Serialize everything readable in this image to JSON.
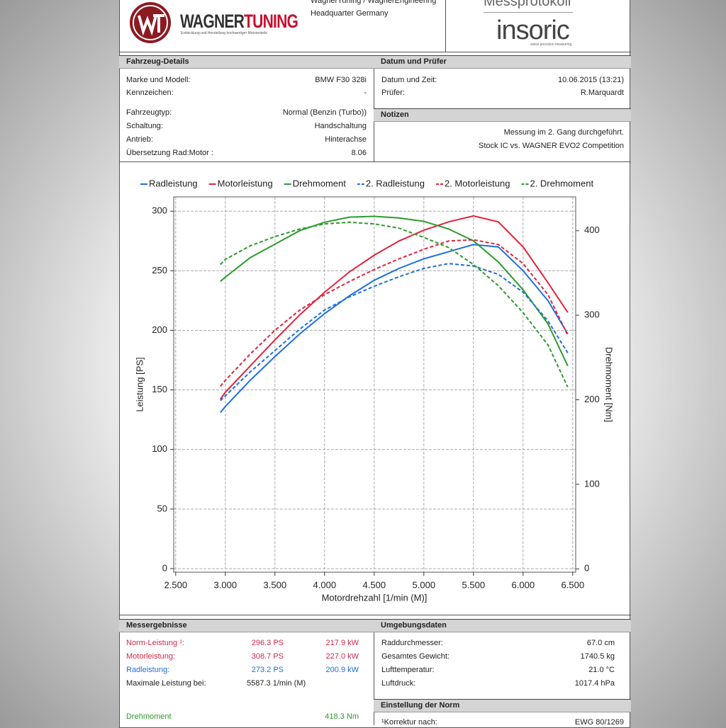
{
  "header": {
    "company_line": "WagnerTuning / WagnerEngineering",
    "location": "Headquarter Germany",
    "logo_part1": "WAGNER",
    "logo_part2": "TUNING",
    "logo_tagline": "Entwicklung und Herstellung hochwertiger Motorenteile",
    "protocol": "Messprotokoll",
    "brand": "insoric",
    "brand_tagline": "swiss precision measuring"
  },
  "vehicle": {
    "title": "Fahrzeug-Details",
    "rows": [
      [
        "Marke und Modell:",
        "BMW F30 328i"
      ],
      [
        "Kennzeichen:",
        "-"
      ],
      [
        "Fahrzeugtyp:",
        "Normal (Benzin (Turbo))"
      ],
      [
        "Schaltung:",
        "Handschaltung"
      ],
      [
        "Antrieb:",
        "Hinterachse"
      ],
      [
        "Übersetzung Rad:Motor :",
        "8.06"
      ]
    ]
  },
  "date": {
    "title": "Datum und Prüfer",
    "rows": [
      [
        "Datum und Zeit:",
        "10.06.2015 (13:21)"
      ],
      [
        "Prüfer:",
        "R.Marquardt"
      ]
    ]
  },
  "notes": {
    "title": "Notizen",
    "lines": [
      "Messung im 2. Gang durchgeführt.",
      "Stock IC vs. WAGNER EVO2 Competition"
    ]
  },
  "chart_data": {
    "type": "line",
    "x_label": "Motordrehzahl [1/min (M)]",
    "y_label": "Leistung [PS]",
    "y2_label": "Drehmoment [Nm]",
    "x": [
      2950,
      3000,
      3250,
      3500,
      3750,
      4000,
      4250,
      4500,
      4750,
      5000,
      5250,
      5500,
      5750,
      6000,
      6250,
      6450
    ],
    "xlim": [
      2480,
      6530
    ],
    "ylim": [
      -3,
      312
    ],
    "y2lim": [
      -4,
      440
    ],
    "grid": true,
    "xticks": [
      {
        "value": 2500,
        "label": "2.500"
      },
      {
        "value": 3000,
        "label": "3.000"
      },
      {
        "value": 3500,
        "label": "3.500"
      },
      {
        "value": 4000,
        "label": "4.000"
      },
      {
        "value": 4500,
        "label": "4.500"
      },
      {
        "value": 5000,
        "label": "5.000"
      },
      {
        "value": 5500,
        "label": "5.500"
      },
      {
        "value": 6000,
        "label": "6.000"
      },
      {
        "value": 6500,
        "label": "6.500"
      }
    ],
    "yticks": [
      0,
      50,
      100,
      150,
      200,
      250,
      300
    ],
    "y2ticks": [
      0,
      100,
      200,
      300,
      400
    ],
    "series": [
      {
        "name": "Radleistung",
        "color": "#1f6fe0",
        "dashed": false,
        "values": [
          131,
          136,
          158,
          178,
          197,
          214,
          229,
          242,
          252,
          260,
          266,
          272,
          270,
          250,
          225,
          197
        ]
      },
      {
        "name": "Motorleistung",
        "color": "#e0243c",
        "dashed": false,
        "values": [
          142,
          148,
          170,
          192,
          213,
          232,
          249,
          263,
          275,
          284,
          291,
          296,
          291,
          270,
          240,
          215
        ]
      },
      {
        "name": "Drehmoment",
        "color": "#2e9a2e",
        "dashed": false,
        "axis": "y2",
        "values": [
          340,
          345,
          368,
          384,
          400,
          410,
          416,
          417,
          415,
          411,
          402,
          388,
          363,
          330,
          290,
          240
        ]
      },
      {
        "name": "2. Radleistung",
        "color": "#1f6fe0",
        "dashed": true,
        "values": [
          141,
          145,
          165,
          183,
          201,
          217,
          228,
          237,
          245,
          252,
          256,
          254,
          247,
          232,
          208,
          181
        ]
      },
      {
        "name": "2. Motorleistung",
        "color": "#e0243c",
        "dashed": true,
        "values": [
          153,
          158,
          180,
          200,
          217,
          230,
          241,
          251,
          260,
          268,
          275,
          276,
          272,
          256,
          230,
          196
        ]
      },
      {
        "name": "2. Drehmoment",
        "color": "#2e9a2e",
        "dashed": true,
        "axis": "y2",
        "values": [
          360,
          366,
          382,
          393,
          402,
          408,
          410,
          408,
          403,
          392,
          380,
          360,
          335,
          303,
          265,
          215
        ]
      }
    ]
  },
  "results": {
    "title": "Messergebnisse",
    "rows": [
      [
        "Norm-Leistung ¹:",
        "296.3 PS",
        "217.9 kW"
      ],
      [
        "Motorleistung:",
        "308.7 PS",
        "227.0 kW"
      ],
      [
        "Radleistung:",
        "273.2 PS",
        "200.9 kW"
      ]
    ],
    "max_label": "Maximale Leistung bei:",
    "max_value": "5587.3 1/min (M)",
    "torque_label": "Drehmoment",
    "torque_value": "418.3 Nm"
  },
  "environment": {
    "title": "Umgebungsdaten",
    "rows": [
      [
        "Raddurchmesser:",
        "67.0 cm"
      ],
      [
        "Gesamtes Gewicht:",
        "1740.5 kg"
      ],
      [
        "Lufttemperatur:",
        "21.0 °C"
      ],
      [
        "Luftdruck:",
        "1017.4 hPa"
      ]
    ]
  },
  "norm": {
    "title": "Einstellung der Norm",
    "rows": [
      [
        "¹Korrektur nach:",
        "EWG 80/1269"
      ]
    ]
  }
}
